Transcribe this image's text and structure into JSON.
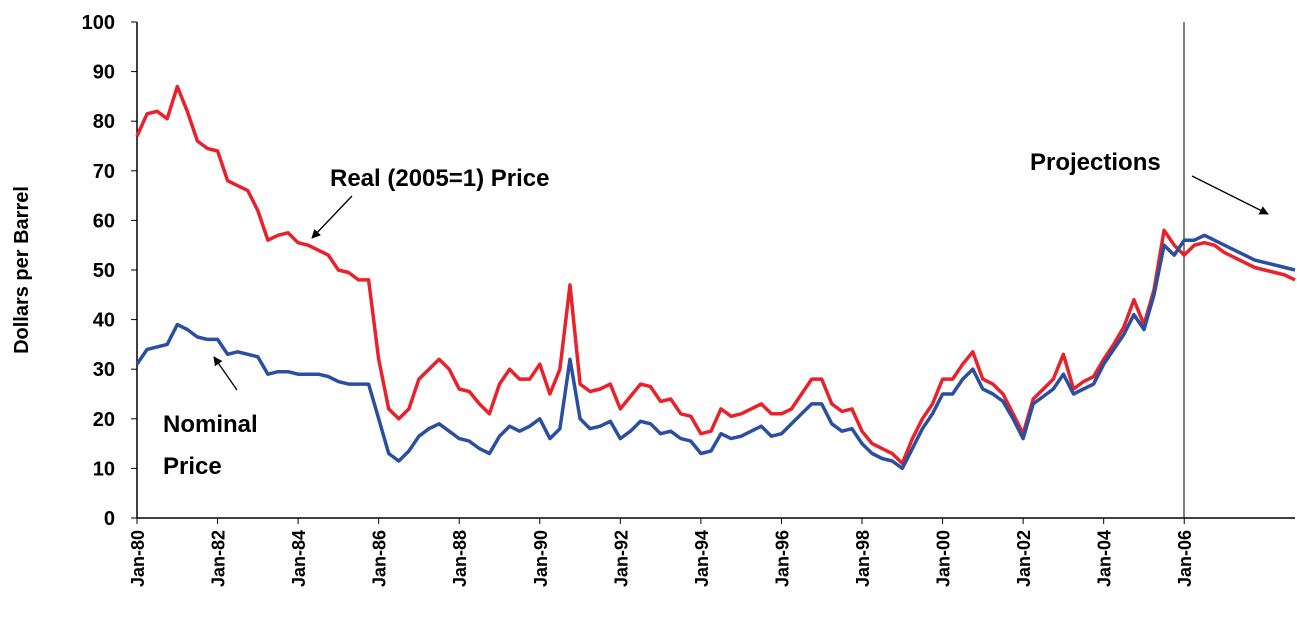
{
  "chart_data": {
    "type": "line",
    "y_label": "Dollars per Barrel",
    "annotations": {
      "real": "Real (2005=1) Price",
      "nominal": [
        "Nominal",
        "Price"
      ],
      "projections": "Projections"
    },
    "categories": [
      "Jan-80",
      null,
      null,
      null,
      null,
      null,
      null,
      null,
      "Jan-82",
      null,
      null,
      null,
      null,
      null,
      null,
      null,
      "Jan-84",
      null,
      null,
      null,
      null,
      null,
      null,
      null,
      "Jan-86",
      null,
      null,
      null,
      null,
      null,
      null,
      null,
      "Jan-88",
      null,
      null,
      null,
      null,
      null,
      null,
      null,
      "Jan-90",
      null,
      null,
      null,
      null,
      null,
      null,
      null,
      "Jan-92",
      null,
      null,
      null,
      null,
      null,
      null,
      null,
      "Jan-94",
      null,
      null,
      null,
      null,
      null,
      null,
      null,
      "Jan-96",
      null,
      null,
      null,
      null,
      null,
      null,
      null,
      "Jan-98",
      null,
      null,
      null,
      null,
      null,
      null,
      null,
      "Jan-00",
      null,
      null,
      null,
      null,
      null,
      null,
      null,
      "Jan-02",
      null,
      null,
      null,
      null,
      null,
      null,
      null,
      "Jan-04",
      null,
      null,
      null,
      null,
      null,
      null,
      null,
      "Jan-06",
      null,
      null,
      null,
      null,
      null,
      null,
      null,
      null,
      null,
      null,
      null
    ],
    "series": [
      {
        "color": "#e8212a",
        "values": [
          77,
          81.5,
          82,
          80.5,
          87,
          82,
          76,
          74.5,
          74,
          68,
          67,
          66,
          62,
          56,
          57,
          57.5,
          55.5,
          55,
          54,
          53,
          50,
          49.5,
          48,
          48,
          32,
          22,
          20,
          22,
          28,
          30,
          32,
          30,
          26,
          25.5,
          23,
          21,
          27,
          30,
          28,
          28,
          31,
          25,
          30,
          47,
          27,
          25.5,
          26,
          27,
          22,
          24.5,
          27,
          26.5,
          23.5,
          24,
          21,
          20.5,
          17,
          17.5,
          22,
          20.5,
          21,
          22,
          23,
          21,
          21,
          22,
          25,
          28,
          28,
          23,
          21.5,
          22,
          17.5,
          15,
          14,
          13,
          11,
          16,
          20,
          23,
          28,
          28,
          31,
          33.5,
          28,
          27,
          25,
          21,
          17,
          24,
          26,
          28,
          33,
          26,
          27.5,
          28.5,
          32,
          35,
          38.5,
          44,
          39,
          46,
          58,
          55,
          53,
          55,
          55.5,
          55,
          53.5,
          52.5,
          51.5,
          50.5,
          50,
          49.5,
          49,
          48
        ]
      },
      {
        "color": "#2b4fa0",
        "values": [
          31,
          34,
          34.5,
          35,
          39,
          38,
          36.5,
          36,
          36,
          33,
          33.5,
          33,
          32.5,
          29,
          29.5,
          29.5,
          29,
          29,
          29,
          28.5,
          27.5,
          27,
          27,
          27,
          20,
          13,
          11.5,
          13.5,
          16.5,
          18,
          19,
          17.5,
          16,
          15.5,
          14,
          13,
          16.5,
          18.5,
          17.5,
          18.5,
          20,
          16,
          18,
          32,
          20,
          18,
          18.5,
          19.5,
          16,
          17.5,
          19.5,
          19,
          17,
          17.5,
          16,
          15.5,
          13,
          13.5,
          17,
          16,
          16.5,
          17.5,
          18.5,
          16.5,
          17,
          19,
          21,
          23,
          23,
          19,
          17.5,
          18,
          15,
          13,
          12,
          11.5,
          10,
          14,
          18,
          21,
          25,
          25,
          28,
          30,
          26,
          25,
          23.5,
          20,
          16,
          23,
          24.5,
          26,
          29,
          25,
          26,
          27,
          31,
          34,
          37,
          41,
          38,
          45,
          55,
          53,
          56,
          56,
          57,
          56,
          55,
          54,
          53,
          52,
          51.5,
          51,
          50.5,
          50
        ]
      }
    ],
    "ylim": [
      0,
      100
    ],
    "yticks": [
      0,
      10,
      20,
      30,
      40,
      50,
      60,
      70,
      80,
      90,
      100
    ]
  }
}
